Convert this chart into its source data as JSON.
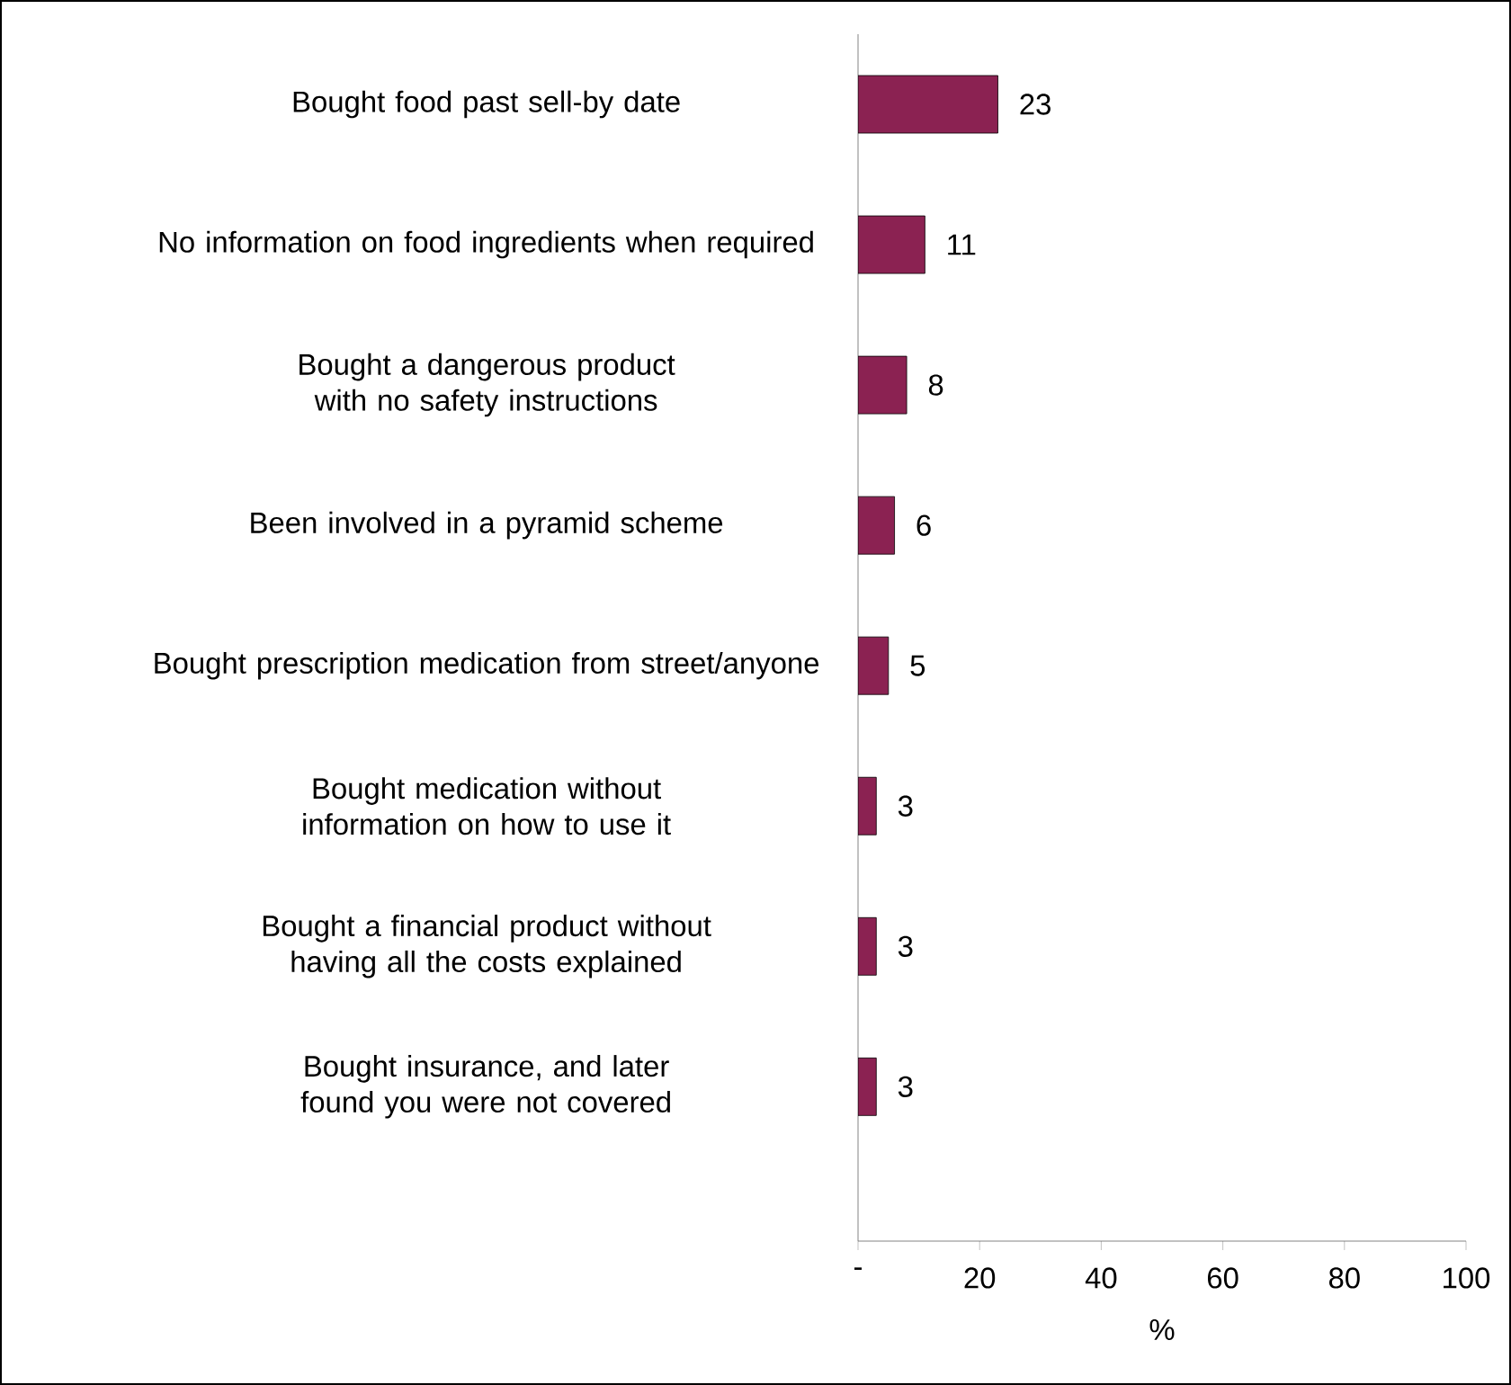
{
  "chart_data": {
    "type": "bar",
    "orientation": "horizontal",
    "xlabel": "%",
    "categories": [
      "Bought food past sell-by date",
      "No information on food ingredients when required",
      "Bought a dangerous product with no safety instructions",
      "Been involved in a pyramid scheme",
      "Bought prescription medication from street/anyone",
      "Bought medication without information on how to use it",
      "Bought a financial product without having all the costs explained",
      "Bought insurance, and later found you were not covered"
    ],
    "values": [
      23,
      11,
      8,
      6,
      5,
      3,
      3,
      3
    ],
    "color": "#8b2252",
    "xlim": [
      0,
      100
    ],
    "xticks": [
      {
        "value": 0,
        "label": "-"
      },
      20,
      40,
      60,
      80,
      100
    ],
    "data_labels": true
  }
}
